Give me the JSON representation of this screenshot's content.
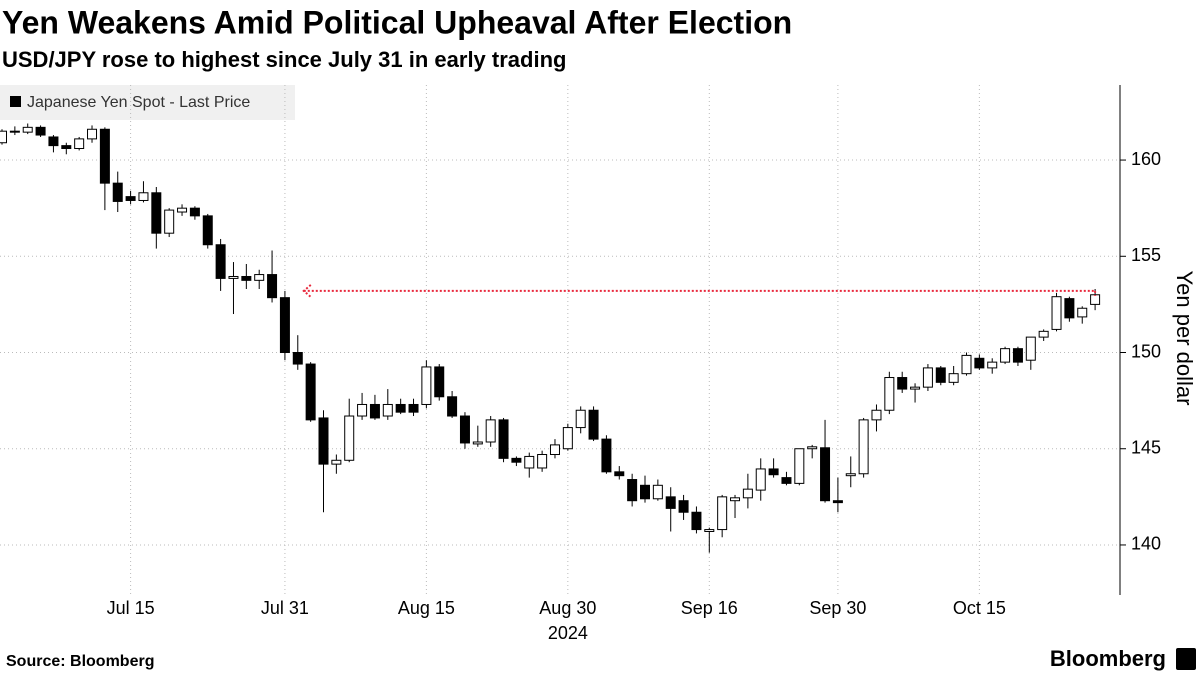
{
  "chart_data": {
    "type": "candlestick",
    "title": "Yen Weakens Amid Political Upheaval After Election",
    "subtitle": "USD/JPY rose to highest since July 31 in early trading",
    "ylabel": "Yen per dollar",
    "xlabel": "2024",
    "source": "Source: Bloomberg",
    "brand": "Bloomberg",
    "legend": "top-left",
    "grid": true,
    "ylim": [
      137.4,
      163.9
    ],
    "yticks": [
      140,
      145,
      150,
      155,
      160
    ],
    "xticks": [
      {
        "value": "2024-07-15",
        "label": "Jul 15"
      },
      {
        "value": "2024-07-31",
        "label": "Jul 31"
      },
      {
        "value": "2024-08-15",
        "label": "Aug 15"
      },
      {
        "value": "2024-08-30",
        "label": "Aug 30"
      },
      {
        "value": "2024-09-16",
        "label": "Sep 16"
      },
      {
        "value": "2024-09-30",
        "label": "Sep 30"
      },
      {
        "value": "2024-10-15",
        "label": "Oct 15"
      }
    ],
    "reference_line": {
      "value": 153.2,
      "x_from": "2024-08-01",
      "x_to": "2024-10-28",
      "color": "#e8283c"
    },
    "x": [
      "2024-07-01",
      "2024-07-02",
      "2024-07-03",
      "2024-07-04",
      "2024-07-05",
      "2024-07-08",
      "2024-07-09",
      "2024-07-10",
      "2024-07-11",
      "2024-07-12",
      "2024-07-15",
      "2024-07-16",
      "2024-07-17",
      "2024-07-18",
      "2024-07-19",
      "2024-07-22",
      "2024-07-23",
      "2024-07-24",
      "2024-07-25",
      "2024-07-26",
      "2024-07-29",
      "2024-07-30",
      "2024-07-31",
      "2024-08-01",
      "2024-08-02",
      "2024-08-05",
      "2024-08-06",
      "2024-08-07",
      "2024-08-08",
      "2024-08-09",
      "2024-08-12",
      "2024-08-13",
      "2024-08-14",
      "2024-08-15",
      "2024-08-16",
      "2024-08-19",
      "2024-08-20",
      "2024-08-21",
      "2024-08-22",
      "2024-08-23",
      "2024-08-26",
      "2024-08-27",
      "2024-08-28",
      "2024-08-29",
      "2024-08-30",
      "2024-09-02",
      "2024-09-03",
      "2024-09-04",
      "2024-09-05",
      "2024-09-06",
      "2024-09-09",
      "2024-09-10",
      "2024-09-11",
      "2024-09-12",
      "2024-09-13",
      "2024-09-16",
      "2024-09-17",
      "2024-09-18",
      "2024-09-19",
      "2024-09-20",
      "2024-09-23",
      "2024-09-24",
      "2024-09-25",
      "2024-09-26",
      "2024-09-27",
      "2024-09-30",
      "2024-10-01",
      "2024-10-02",
      "2024-10-03",
      "2024-10-04",
      "2024-10-07",
      "2024-10-08",
      "2024-10-09",
      "2024-10-10",
      "2024-10-11",
      "2024-10-14",
      "2024-10-15",
      "2024-10-16",
      "2024-10-17",
      "2024-10-18",
      "2024-10-21",
      "2024-10-22",
      "2024-10-23",
      "2024-10-24",
      "2024-10-25",
      "2024-10-28"
    ],
    "series": [
      {
        "name": "Japanese Yen Spot - Last Price",
        "up_color": "#ffffff",
        "down_color": "#000000",
        "edge_color": "#000000",
        "open": [
          160.9,
          161.5,
          161.45,
          161.7,
          161.2,
          160.75,
          160.6,
          161.1,
          161.6,
          158.8,
          158.1,
          157.9,
          158.3,
          156.2,
          157.3,
          157.5,
          157.1,
          155.6,
          153.85,
          153.95,
          153.75,
          154.05,
          152.85,
          150.0,
          149.4,
          146.6,
          144.2,
          144.4,
          146.7,
          147.3,
          146.7,
          147.3,
          147.3,
          147.3,
          149.25,
          147.7,
          146.7,
          145.25,
          145.35,
          146.5,
          144.5,
          144.0,
          144.0,
          144.7,
          145.0,
          146.1,
          147.0,
          145.5,
          143.8,
          143.4,
          143.1,
          142.4,
          142.5,
          142.3,
          141.7,
          140.7,
          140.8,
          142.3,
          142.45,
          142.85,
          143.95,
          143.5,
          143.2,
          145.0,
          145.05,
          142.3,
          143.6,
          143.7,
          146.5,
          147.0,
          148.7,
          148.1,
          148.2,
          149.2,
          148.45,
          148.9,
          149.7,
          149.2,
          149.5,
          150.2,
          149.6,
          150.8,
          151.2,
          152.8,
          151.85,
          152.5
        ],
        "high": [
          161.6,
          161.75,
          161.9,
          161.8,
          161.3,
          160.9,
          161.2,
          161.8,
          161.7,
          159.4,
          158.4,
          158.9,
          158.6,
          157.5,
          157.7,
          157.6,
          157.2,
          155.9,
          154.7,
          154.6,
          154.3,
          155.3,
          153.2,
          150.9,
          149.5,
          147.0,
          144.7,
          147.6,
          147.9,
          147.8,
          148.1,
          147.6,
          147.6,
          149.6,
          149.4,
          148.0,
          146.9,
          146.2,
          146.7,
          146.6,
          144.6,
          144.8,
          144.9,
          145.5,
          146.3,
          147.2,
          147.2,
          145.7,
          144.1,
          143.7,
          143.6,
          143.4,
          143.0,
          142.6,
          142.0,
          140.9,
          142.6,
          142.6,
          143.7,
          144.5,
          144.5,
          143.8,
          145.0,
          145.2,
          146.5,
          143.5,
          144.6,
          146.6,
          147.3,
          149.0,
          149.0,
          148.4,
          149.4,
          149.3,
          149.3,
          150.0,
          149.9,
          149.7,
          150.3,
          150.3,
          150.8,
          151.2,
          153.1,
          152.9,
          152.4,
          153.3
        ],
        "low": [
          160.8,
          161.3,
          161.35,
          161.2,
          160.4,
          160.3,
          160.5,
          160.9,
          157.4,
          157.3,
          157.7,
          157.8,
          155.4,
          156.0,
          157.1,
          156.9,
          155.4,
          153.2,
          152.0,
          153.3,
          153.3,
          152.6,
          149.6,
          149.1,
          146.4,
          141.7,
          143.7,
          144.3,
          146.5,
          146.5,
          146.5,
          146.8,
          146.7,
          147.1,
          147.5,
          146.6,
          145.0,
          145.1,
          145.1,
          144.3,
          144.1,
          143.5,
          143.8,
          144.5,
          144.9,
          145.8,
          145.4,
          143.7,
          143.4,
          142.0,
          142.2,
          142.3,
          140.7,
          141.3,
          140.6,
          139.6,
          140.4,
          141.4,
          141.9,
          142.3,
          143.5,
          143.1,
          143.1,
          144.5,
          142.2,
          141.7,
          143.0,
          143.5,
          145.9,
          146.8,
          147.9,
          147.4,
          148.0,
          148.3,
          148.3,
          148.8,
          149.1,
          148.9,
          149.4,
          149.3,
          149.1,
          150.6,
          151.1,
          151.6,
          151.5,
          152.2
        ],
        "close": [
          161.5,
          161.45,
          161.7,
          161.3,
          160.75,
          160.6,
          161.1,
          161.6,
          158.8,
          157.85,
          157.9,
          158.3,
          156.2,
          157.4,
          157.5,
          157.1,
          155.6,
          153.85,
          153.95,
          153.75,
          154.05,
          152.85,
          150.0,
          149.4,
          146.5,
          144.2,
          144.4,
          146.7,
          147.3,
          146.6,
          147.3,
          146.9,
          146.9,
          149.25,
          147.7,
          146.7,
          145.3,
          145.35,
          146.5,
          144.5,
          144.3,
          144.6,
          144.7,
          145.2,
          146.1,
          147.0,
          145.5,
          143.8,
          143.6,
          142.3,
          142.4,
          143.1,
          141.9,
          141.7,
          140.8,
          140.8,
          142.5,
          142.45,
          142.9,
          143.95,
          143.65,
          143.2,
          145.0,
          145.1,
          142.3,
          142.2,
          143.7,
          146.5,
          147.0,
          148.7,
          148.1,
          148.2,
          149.2,
          148.45,
          148.9,
          149.85,
          149.2,
          149.5,
          150.2,
          149.5,
          150.8,
          151.1,
          152.9,
          151.8,
          152.3,
          153.0
        ]
      }
    ]
  }
}
